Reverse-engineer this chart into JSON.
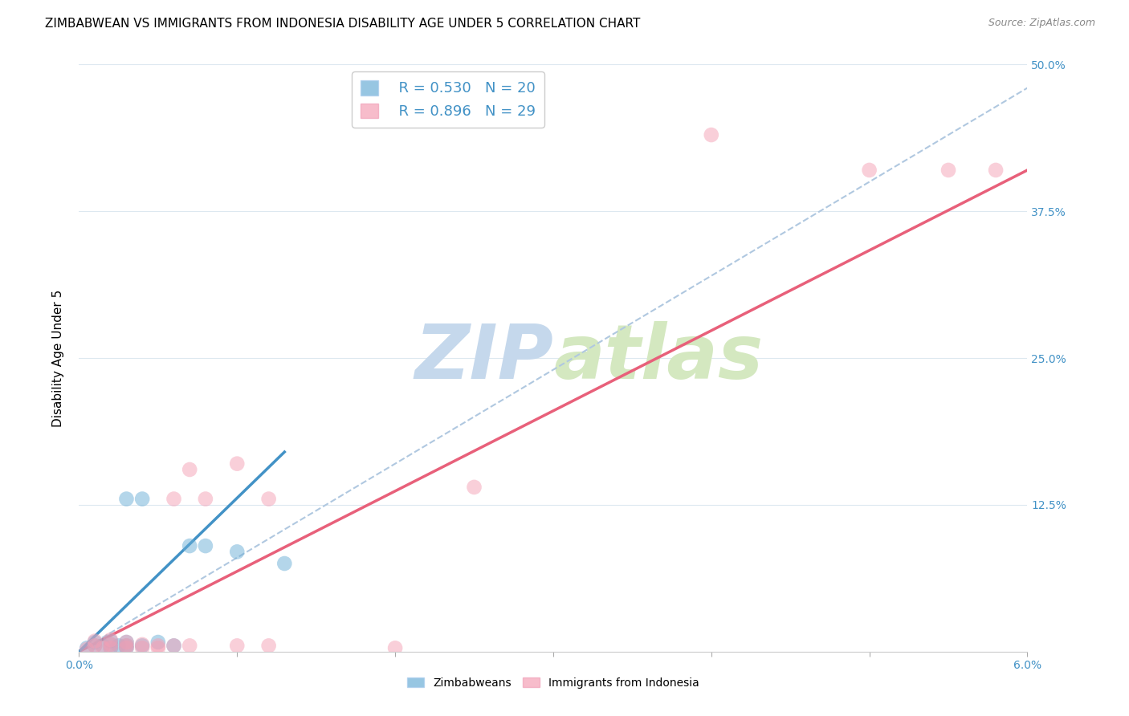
{
  "title": "ZIMBABWEAN VS IMMIGRANTS FROM INDONESIA DISABILITY AGE UNDER 5 CORRELATION CHART",
  "source": "Source: ZipAtlas.com",
  "ylabel_label": "Disability Age Under 5",
  "x_min": 0.0,
  "x_max": 0.06,
  "y_min": 0.0,
  "y_max": 0.5,
  "x_ticks": [
    0.0,
    0.01,
    0.02,
    0.03,
    0.04,
    0.05,
    0.06
  ],
  "x_tick_labels": [
    "0.0%",
    "",
    "",
    "",
    "",
    "",
    "6.0%"
  ],
  "y_ticks": [
    0.0,
    0.125,
    0.25,
    0.375,
    0.5
  ],
  "y_tick_labels": [
    "",
    "12.5%",
    "25.0%",
    "37.5%",
    "50.0%"
  ],
  "blue_color": "#6baed6",
  "pink_color": "#f4a0b5",
  "blue_line_color": "#4292c6",
  "pink_line_color": "#e8607a",
  "dashed_line_color": "#b0c8e0",
  "grid_color": "#dde8f0",
  "tick_color": "#4292c6",
  "legend_R1": "R = 0.530",
  "legend_N1": "N = 20",
  "legend_R2": "R = 0.896",
  "legend_N2": "N = 29",
  "blue_scatter_x": [
    0.0005,
    0.001,
    0.001,
    0.0015,
    0.002,
    0.002,
    0.002,
    0.0025,
    0.003,
    0.003,
    0.003,
    0.003,
    0.004,
    0.004,
    0.005,
    0.006,
    0.007,
    0.008,
    0.01,
    0.013
  ],
  "blue_scatter_y": [
    0.003,
    0.005,
    0.008,
    0.005,
    0.003,
    0.006,
    0.009,
    0.005,
    0.003,
    0.005,
    0.008,
    0.13,
    0.005,
    0.13,
    0.008,
    0.005,
    0.09,
    0.09,
    0.085,
    0.075
  ],
  "pink_scatter_x": [
    0.0005,
    0.001,
    0.001,
    0.0015,
    0.002,
    0.002,
    0.002,
    0.003,
    0.003,
    0.003,
    0.004,
    0.004,
    0.005,
    0.005,
    0.006,
    0.006,
    0.007,
    0.007,
    0.008,
    0.01,
    0.01,
    0.012,
    0.012,
    0.02,
    0.025,
    0.04,
    0.05,
    0.055,
    0.058
  ],
  "pink_scatter_y": [
    0.002,
    0.005,
    0.009,
    0.003,
    0.003,
    0.006,
    0.01,
    0.003,
    0.005,
    0.008,
    0.003,
    0.006,
    0.003,
    0.005,
    0.005,
    0.13,
    0.005,
    0.155,
    0.13,
    0.005,
    0.16,
    0.005,
    0.13,
    0.003,
    0.14,
    0.44,
    0.41,
    0.41,
    0.41
  ],
  "blue_line_x": [
    0.0,
    0.013
  ],
  "blue_line_y": [
    0.0,
    0.17
  ],
  "pink_line_x": [
    0.0,
    0.06
  ],
  "pink_line_y": [
    0.0,
    0.41
  ],
  "dashed_line_x": [
    0.0,
    0.06
  ],
  "dashed_line_y": [
    0.0,
    0.48
  ],
  "watermark_zip": "ZIP",
  "watermark_atlas": "atlas",
  "watermark_color": "#c5d8ec"
}
